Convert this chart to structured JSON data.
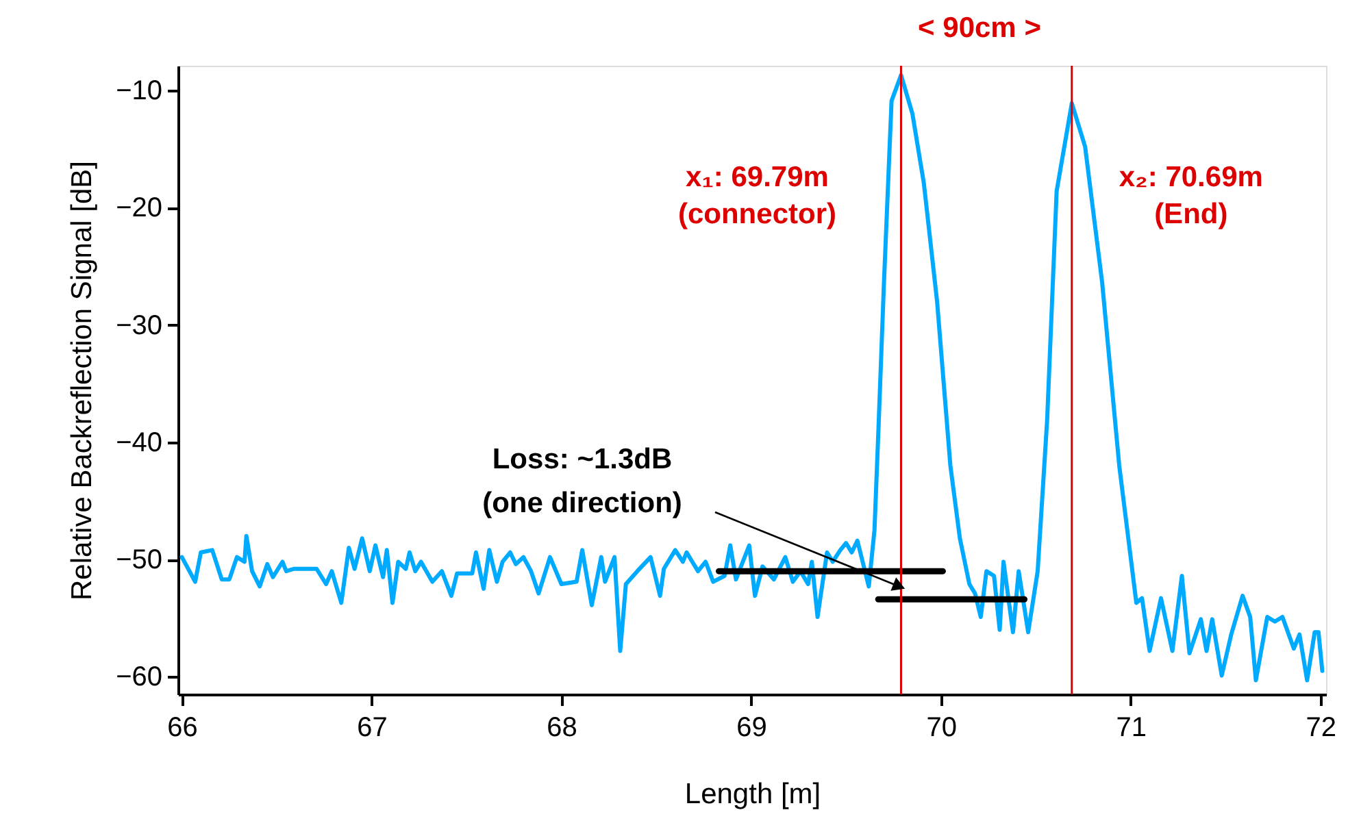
{
  "chart_data": {
    "type": "line",
    "xlabel": "Length [m]",
    "ylabel": "Relative Backreflection Signal [dB]",
    "xlim": [
      65.98,
      72.03
    ],
    "ylim": [
      -61.5,
      -7.9
    ],
    "xticks": [
      66,
      67,
      68,
      69,
      70,
      71,
      72
    ],
    "yticks": [
      -60,
      -50,
      -40,
      -30,
      -20,
      -10
    ],
    "grid": false,
    "line_style": "solid",
    "marker": "none",
    "series": [
      {
        "color": "#00aaff",
        "x": [
          66.0,
          66.07,
          66.1,
          66.16,
          66.21,
          66.25,
          66.29,
          66.33,
          66.34,
          66.37,
          66.41,
          66.45,
          66.48,
          66.53,
          66.55,
          66.59,
          66.71,
          66.76,
          66.79,
          66.84,
          66.88,
          66.91,
          66.95,
          66.99,
          67.02,
          67.06,
          67.08,
          67.11,
          67.14,
          67.18,
          67.2,
          67.23,
          67.26,
          67.32,
          67.37,
          67.42,
          67.45,
          67.53,
          67.55,
          67.59,
          67.62,
          67.66,
          67.69,
          67.73,
          67.76,
          67.8,
          67.84,
          67.88,
          67.94,
          68.0,
          68.08,
          68.11,
          68.16,
          68.21,
          68.23,
          68.28,
          68.31,
          68.34,
          68.4,
          68.47,
          68.52,
          68.54,
          68.6,
          68.64,
          68.66,
          68.72,
          68.76,
          68.8,
          68.86,
          68.89,
          68.92,
          68.99,
          69.02,
          69.06,
          69.12,
          69.18,
          69.22,
          69.26,
          69.3,
          69.32,
          69.35,
          69.4,
          69.43,
          69.47,
          69.5,
          69.53,
          69.56,
          69.62,
          69.65,
          69.67,
          69.7,
          69.74,
          69.79,
          69.85,
          69.91,
          69.98,
          70.05,
          70.1,
          70.15,
          70.18,
          70.21,
          70.24,
          70.28,
          70.31,
          70.33,
          70.38,
          70.41,
          70.46,
          70.51,
          70.56,
          70.61,
          70.69,
          70.76,
          70.85,
          70.94,
          71.03,
          71.06,
          71.1,
          71.16,
          71.22,
          71.27,
          71.31,
          71.37,
          71.4,
          71.43,
          71.48,
          71.53,
          71.59,
          71.63,
          71.66,
          71.72,
          71.76,
          71.8,
          71.86,
          71.89,
          71.93,
          71.97,
          71.99,
          72.01
        ],
        "values": [
          -49.8,
          -51.9,
          -49.4,
          -49.2,
          -51.7,
          -51.7,
          -49.8,
          -50.2,
          -48.0,
          -51.0,
          -52.3,
          -50.4,
          -51.5,
          -50.2,
          -51.0,
          -50.8,
          -50.8,
          -52.1,
          -51.0,
          -53.7,
          -49.0,
          -50.8,
          -48.2,
          -51.0,
          -48.8,
          -51.5,
          -49.2,
          -53.7,
          -50.2,
          -50.8,
          -49.4,
          -51.0,
          -50.2,
          -51.9,
          -51.0,
          -53.1,
          -51.2,
          -51.2,
          -49.4,
          -52.5,
          -49.2,
          -51.9,
          -50.2,
          -49.4,
          -50.4,
          -49.8,
          -51.0,
          -52.9,
          -49.8,
          -52.1,
          -51.9,
          -49.2,
          -53.9,
          -49.8,
          -51.9,
          -49.8,
          -57.8,
          -52.1,
          -51.0,
          -49.8,
          -53.1,
          -50.8,
          -49.2,
          -50.2,
          -49.4,
          -51.0,
          -50.2,
          -51.9,
          -51.4,
          -48.8,
          -51.7,
          -48.8,
          -53.1,
          -50.6,
          -51.7,
          -49.8,
          -51.9,
          -51.0,
          -52.1,
          -50.2,
          -54.9,
          -49.4,
          -50.2,
          -49.2,
          -48.6,
          -49.4,
          -48.4,
          -52.3,
          -47.5,
          -39.3,
          -26.4,
          -10.9,
          -8.7,
          -12.0,
          -17.9,
          -28.0,
          -42.0,
          -48.2,
          -52.1,
          -52.9,
          -54.9,
          -51.0,
          -51.4,
          -56.0,
          -50.2,
          -56.2,
          -51.0,
          -56.2,
          -51.0,
          -38.1,
          -18.6,
          -11.1,
          -14.8,
          -26.4,
          -42.0,
          -53.7,
          -53.3,
          -57.8,
          -53.3,
          -57.8,
          -51.4,
          -58.0,
          -55.1,
          -57.8,
          -55.1,
          -59.9,
          -56.4,
          -53.1,
          -54.9,
          -60.3,
          -54.9,
          -55.3,
          -54.9,
          -57.6,
          -56.4,
          -60.3,
          -56.2,
          -56.2,
          -59.5
        ]
      },
      {
        "color": "#000000",
        "x": [
          68.83,
          70.01
        ],
        "values": [
          -51.0,
          -51.0
        ]
      },
      {
        "color": "#000000",
        "x": [
          69.67,
          70.44
        ],
        "values": [
          -53.4,
          -53.4
        ]
      }
    ],
    "ref_lines": [
      {
        "axis": "x",
        "value": 69.79,
        "label": "x₁: 69.79m\n(connector)",
        "color": "#dd0000"
      },
      {
        "axis": "x",
        "value": 70.69,
        "label": "x₂: 70.69m\n(End)",
        "color": "#dd0000"
      }
    ],
    "annotations": [
      {
        "text": "Loss: ~1.3dB\n(one direction)",
        "x": 69.78,
        "y": -52.3
      },
      "<  90cm >"
    ]
  }
}
